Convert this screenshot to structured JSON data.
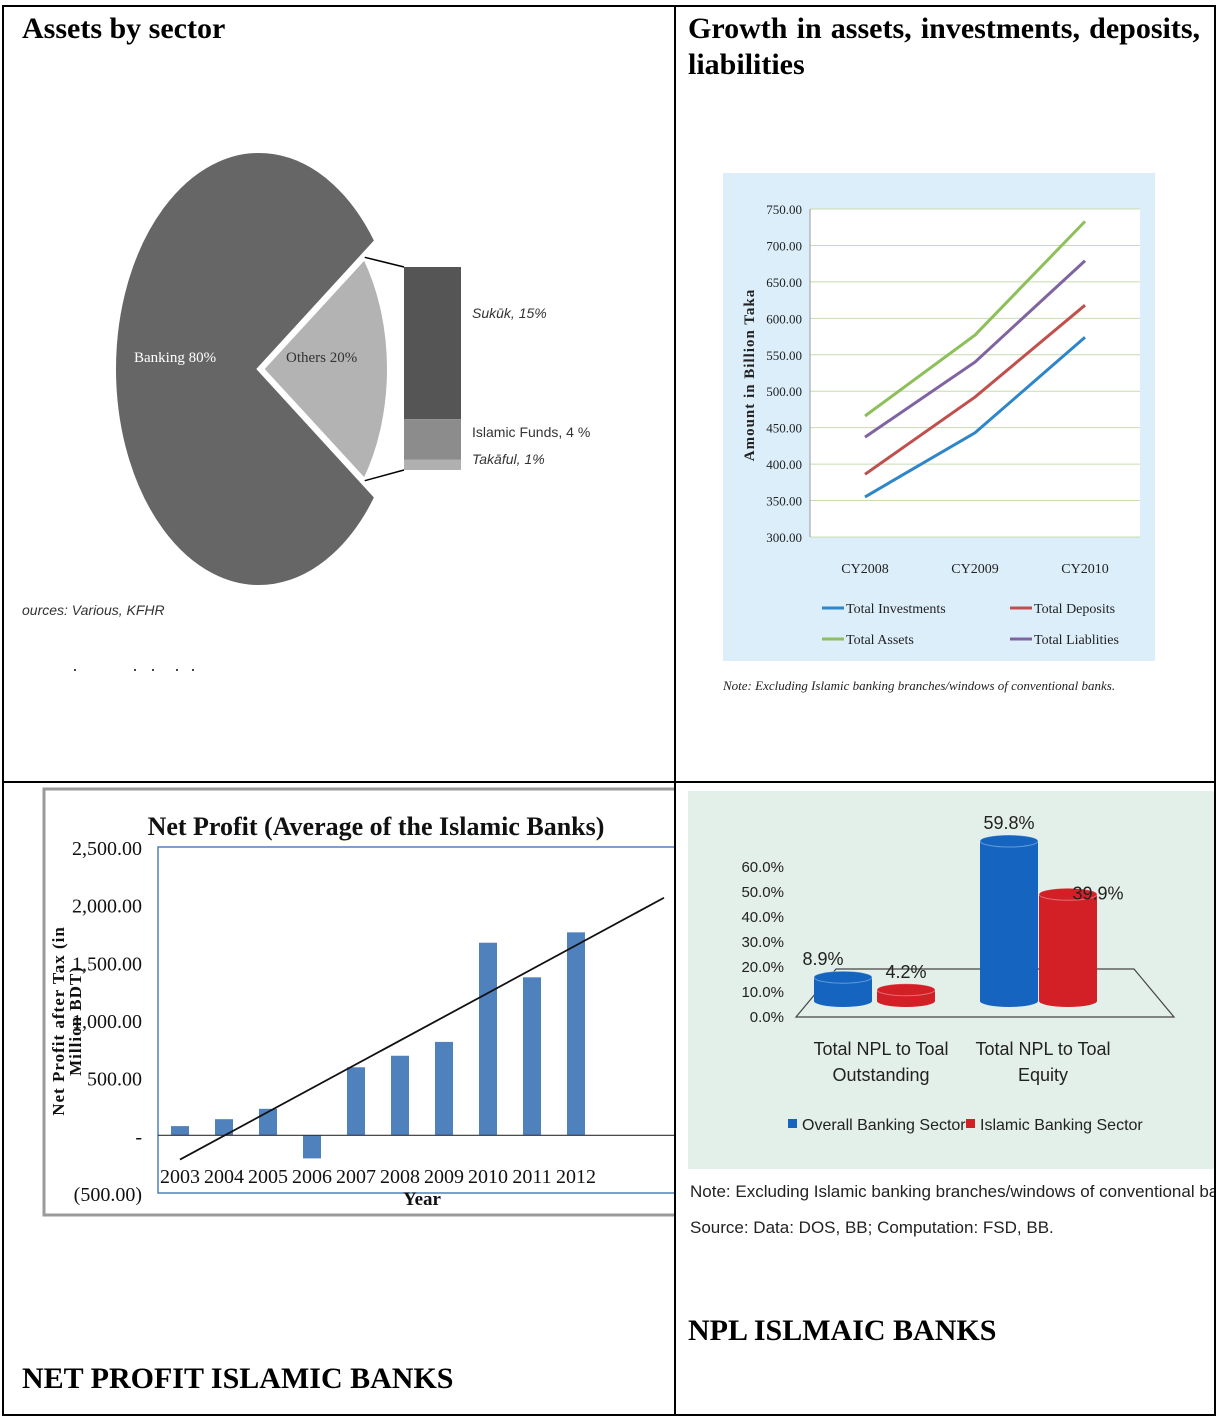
{
  "cells": {
    "assets_heading": "Assets by sector",
    "growth_heading": "Growth in assets, investments, deposits, liabilities",
    "net_profit_heading": "NET PROFIT ISLAMIC BANKS",
    "npl_heading": "NPL ISLMAIC BANKS"
  },
  "colors": {
    "banking": "#666666",
    "others": "#b3b3b3",
    "sukuk": "#555555",
    "islamic_funds": "#8c8c8c",
    "takaful": "#b0b0b0",
    "investments": "#2e86c9",
    "deposits": "#c0504d",
    "assets": "#8dbf5a",
    "liabilities": "#8064a2",
    "bar_blue": "#4f81bd",
    "overall": "#1565c0",
    "islamic": "#d32027",
    "green_panel": "#e3efe9",
    "blue_panel": "#dbeefa"
  },
  "chart_data": [
    {
      "type": "pie",
      "slices": [
        {
          "label": "Banking 80%",
          "value": 80
        },
        {
          "label": "Others 20%",
          "value": 20
        }
      ],
      "breakdown": [
        {
          "label": "Sukūk, 15%",
          "value": 15
        },
        {
          "label": "Islamic Funds, 4 %",
          "value": 4
        },
        {
          "label": "Takāful, 1%",
          "value": 1
        }
      ],
      "source": "ources: Various, KFHR"
    },
    {
      "type": "line",
      "categories": [
        "CY2008",
        "CY2009",
        "CY2010"
      ],
      "series": [
        {
          "name": "Total Investments",
          "values": [
            355,
            443,
            574
          ]
        },
        {
          "name": "Total Deposits",
          "values": [
            386,
            492,
            618
          ]
        },
        {
          "name": "Total Assets",
          "values": [
            466,
            577,
            733
          ]
        },
        {
          "name": "Total Liablities",
          "values": [
            437,
            540,
            679
          ]
        }
      ],
      "ylabel": "Amount in Billion Taka",
      "ylim": [
        300,
        750
      ],
      "yticks": [
        "750.00",
        "700.00",
        "650.00",
        "600.00",
        "550.00",
        "500.00",
        "450.00",
        "400.00",
        "350.00",
        "300.00"
      ],
      "grid": true,
      "legend": "bottom",
      "note": "Note: Excluding Islamic banking branches/windows of conventional banks."
    },
    {
      "type": "bar",
      "title": "Net Profit (Average of the Islamic Banks)",
      "categories": [
        "2003",
        "2004",
        "2005",
        "2006",
        "2007",
        "2008",
        "2009",
        "2010",
        "2011",
        "2012"
      ],
      "values": [
        80,
        140,
        230,
        -200,
        590,
        690,
        810,
        1670,
        1370,
        1760
      ],
      "trendline": [
        -210,
        2060
      ],
      "xlabel": "Year",
      "ylabel": "Net Profit after Tax (in Million BDT)",
      "ylim": [
        -500,
        2500
      ],
      "yticks": [
        "2,500.00",
        "2,000.00",
        "1,500.00",
        "1,000.00",
        "500.00",
        "-",
        "(500.00)"
      ]
    },
    {
      "type": "bar",
      "categories": [
        "Total NPL to Toal Outstanding",
        "Total NPL to Toal Equity"
      ],
      "series": [
        {
          "name": "Overall Banking Sector",
          "values": [
            8.9,
            59.8
          ],
          "labels": [
            "8.9%",
            "59.8%"
          ]
        },
        {
          "name": "Islamic Banking Sector",
          "values": [
            4.2,
            39.9
          ],
          "labels": [
            "4.2%",
            "39.9%"
          ]
        }
      ],
      "ylim": [
        0,
        60
      ],
      "yticks": [
        "60.0%",
        "50.0%",
        "40.0%",
        "30.0%",
        "20.0%",
        "10.0%",
        "0.0%"
      ],
      "legend": "bottom",
      "note": "Note: Excluding Islamic banking branches/windows of conventional ba",
      "source": "Source: Data: DOS, BB; Computation: FSD, BB."
    }
  ]
}
